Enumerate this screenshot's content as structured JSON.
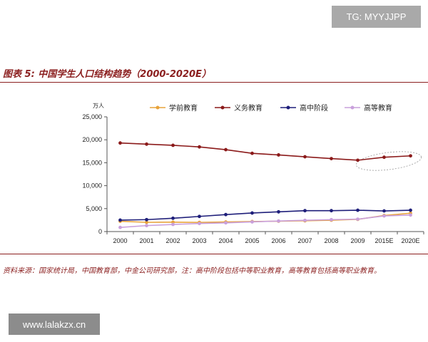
{
  "watermark_top": "TG: MYYJJPP",
  "watermark_bottom": "www.lalakzx.cn",
  "figure_title": "图表 5:  中国学生人口结构趋势（2000-2020E）",
  "source_note": "资料来源：国家统计局，中国教育部，中金公司研究部，注：高中阶段包括中等职业教育，高等教育包括高等职业教育。",
  "chart_data": {
    "type": "line",
    "unit_label": "万人",
    "categories": [
      "2000",
      "2001",
      "2002",
      "2003",
      "2004",
      "2005",
      "2006",
      "2007",
      "2008",
      "2009",
      "2015E",
      "2020E"
    ],
    "ylim": [
      0,
      25000
    ],
    "yticks": [
      0,
      5000,
      10000,
      15000,
      20000,
      25000
    ],
    "ytick_labels": [
      "0",
      "5,000",
      "10,000",
      "15,000",
      "20,000",
      "25,000"
    ],
    "legend_position": "top",
    "grid": false,
    "series": [
      {
        "name": "学前教育",
        "color": "#e8a33a",
        "values": [
          2240,
          2020,
          2040,
          2000,
          2090,
          2180,
          2260,
          2350,
          2480,
          2660,
          3500,
          4000
        ]
      },
      {
        "name": "义务教育",
        "color": "#8b1a1a",
        "values": [
          19300,
          19050,
          18800,
          18450,
          17850,
          17050,
          16700,
          16300,
          15900,
          15550,
          16200,
          16500
        ]
      },
      {
        "name": "高中阶段",
        "color": "#1f1f7a",
        "values": [
          2500,
          2600,
          2900,
          3300,
          3700,
          4050,
          4300,
          4550,
          4550,
          4650,
          4500,
          4650
        ]
      },
      {
        "name": "高等教育",
        "color": "#c9a0dc",
        "values": [
          900,
          1300,
          1550,
          1750,
          1900,
          2100,
          2300,
          2450,
          2600,
          2700,
          3400,
          3600
        ]
      }
    ],
    "annotation": "circled highlight of 2009–2020E 义务教育 rebound"
  }
}
